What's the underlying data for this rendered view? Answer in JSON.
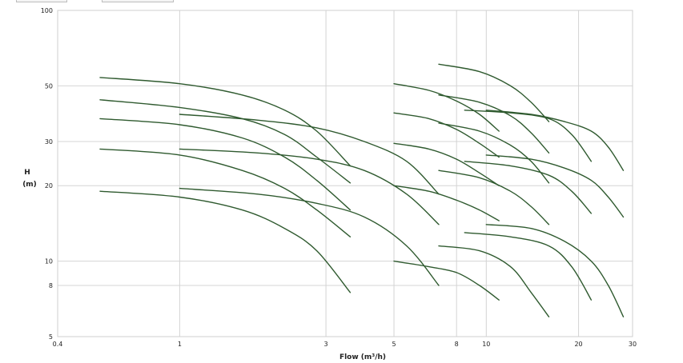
{
  "colors": {
    "curve": "#2f5a2f",
    "grid": "#d4d4d4",
    "frame": "#cfcfcf"
  },
  "chart_data": {
    "type": "line",
    "title": "",
    "xlabel": "Flow (m³/h)",
    "ylabel_line1": "H",
    "ylabel_line2": "(m)",
    "x_scale": "log",
    "y_scale": "log",
    "xlim": [
      0.4,
      30
    ],
    "ylim": [
      5,
      100
    ],
    "grid": true,
    "x_ticks": [
      {
        "value": 0.4,
        "label": "0.4"
      },
      {
        "value": 1,
        "label": "1"
      },
      {
        "value": 3,
        "label": "3"
      },
      {
        "value": 5,
        "label": "5"
      },
      {
        "value": 8,
        "label": "8"
      },
      {
        "value": 10,
        "label": "10"
      },
      {
        "value": 20,
        "label": "20"
      },
      {
        "value": 30,
        "label": "30"
      }
    ],
    "y_ticks": [
      {
        "value": 5,
        "label": "5"
      },
      {
        "value": 8,
        "label": "8"
      },
      {
        "value": 10,
        "label": "10"
      },
      {
        "value": 20,
        "label": "20"
      },
      {
        "value": 30,
        "label": "30"
      },
      {
        "value": 50,
        "label": "50"
      },
      {
        "value": 100,
        "label": "100"
      }
    ],
    "series": [
      {
        "points": [
          [
            0.55,
            54
          ],
          [
            1.0,
            51
          ],
          [
            1.6,
            46
          ],
          [
            2.2,
            40
          ],
          [
            2.8,
            33
          ],
          [
            3.6,
            24
          ]
        ]
      },
      {
        "points": [
          [
            0.55,
            44
          ],
          [
            1.0,
            41
          ],
          [
            1.6,
            37
          ],
          [
            2.2,
            32
          ],
          [
            2.8,
            26
          ],
          [
            3.6,
            20.5
          ]
        ]
      },
      {
        "points": [
          [
            0.55,
            37
          ],
          [
            1.0,
            35
          ],
          [
            1.6,
            31
          ],
          [
            2.2,
            26
          ],
          [
            2.8,
            21
          ],
          [
            3.6,
            16
          ]
        ]
      },
      {
        "points": [
          [
            0.55,
            28
          ],
          [
            1.0,
            26.5
          ],
          [
            1.6,
            23
          ],
          [
            2.2,
            19.5
          ],
          [
            2.8,
            16
          ],
          [
            3.6,
            12.5
          ]
        ]
      },
      {
        "points": [
          [
            0.55,
            19
          ],
          [
            1.0,
            18
          ],
          [
            1.6,
            16
          ],
          [
            2.2,
            13.5
          ],
          [
            2.8,
            11
          ],
          [
            3.6,
            7.5
          ]
        ]
      },
      {
        "points": [
          [
            1.0,
            38.5
          ],
          [
            1.8,
            36.5
          ],
          [
            2.8,
            34
          ],
          [
            4.0,
            30
          ],
          [
            5.5,
            25
          ],
          [
            7.0,
            18.5
          ]
        ]
      },
      {
        "points": [
          [
            1.0,
            28
          ],
          [
            1.8,
            27
          ],
          [
            2.8,
            25.5
          ],
          [
            4.0,
            23
          ],
          [
            5.5,
            18.5
          ],
          [
            7.0,
            14
          ]
        ]
      },
      {
        "points": [
          [
            1.0,
            19.5
          ],
          [
            1.8,
            18.5
          ],
          [
            2.8,
            17
          ],
          [
            4.0,
            15
          ],
          [
            5.5,
            11.5
          ],
          [
            7.0,
            8
          ]
        ]
      },
      {
        "points": [
          [
            5.0,
            51
          ],
          [
            6.5,
            48
          ],
          [
            8.0,
            43.5
          ],
          [
            9.5,
            38.5
          ],
          [
            11.0,
            33
          ]
        ]
      },
      {
        "points": [
          [
            5.0,
            39
          ],
          [
            6.5,
            37
          ],
          [
            8.0,
            33.5
          ],
          [
            9.5,
            29.5
          ],
          [
            11.0,
            26
          ]
        ]
      },
      {
        "points": [
          [
            5.0,
            29.5
          ],
          [
            6.5,
            28
          ],
          [
            8.0,
            25.5
          ],
          [
            9.5,
            22.5
          ],
          [
            11.0,
            20
          ]
        ]
      },
      {
        "points": [
          [
            5.0,
            20
          ],
          [
            6.5,
            19
          ],
          [
            8.0,
            17.5
          ],
          [
            9.5,
            16
          ],
          [
            11.0,
            14.5
          ]
        ]
      },
      {
        "points": [
          [
            5.0,
            10
          ],
          [
            6.5,
            9.5
          ],
          [
            8.0,
            9
          ],
          [
            9.5,
            8
          ],
          [
            11.0,
            7
          ]
        ]
      },
      {
        "points": [
          [
            7.0,
            61
          ],
          [
            9.5,
            57
          ],
          [
            12.0,
            50
          ],
          [
            14.0,
            43
          ],
          [
            16.0,
            36
          ]
        ]
      },
      {
        "points": [
          [
            7.0,
            46
          ],
          [
            9.5,
            43
          ],
          [
            12.0,
            38
          ],
          [
            14.0,
            32.5
          ],
          [
            16.0,
            27
          ]
        ]
      },
      {
        "points": [
          [
            7.0,
            35.5
          ],
          [
            9.5,
            33
          ],
          [
            12.0,
            29
          ],
          [
            14.0,
            25
          ],
          [
            16.0,
            20.5
          ]
        ]
      },
      {
        "points": [
          [
            7.0,
            23
          ],
          [
            9.5,
            21.5
          ],
          [
            12.0,
            19
          ],
          [
            14.0,
            16.5
          ],
          [
            16.0,
            14
          ]
        ]
      },
      {
        "points": [
          [
            7.0,
            11.5
          ],
          [
            9.5,
            11
          ],
          [
            12.0,
            9.5
          ],
          [
            14.0,
            7.5
          ],
          [
            16.0,
            6
          ]
        ]
      },
      {
        "points": [
          [
            8.5,
            40
          ],
          [
            12.0,
            39
          ],
          [
            16.0,
            37
          ],
          [
            19.0,
            32
          ],
          [
            22.0,
            25
          ]
        ]
      },
      {
        "points": [
          [
            8.5,
            25
          ],
          [
            12.0,
            24
          ],
          [
            16.0,
            22
          ],
          [
            19.0,
            19
          ],
          [
            22.0,
            15.5
          ]
        ]
      },
      {
        "points": [
          [
            8.5,
            13
          ],
          [
            12.0,
            12.5
          ],
          [
            16.0,
            11.5
          ],
          [
            19.0,
            9.5
          ],
          [
            22.0,
            7
          ]
        ]
      },
      {
        "points": [
          [
            10.0,
            40
          ],
          [
            14.0,
            38.5
          ],
          [
            18.0,
            36
          ],
          [
            22.0,
            33
          ],
          [
            25.0,
            28.5
          ],
          [
            28.0,
            23
          ]
        ]
      },
      {
        "points": [
          [
            10.0,
            26.5
          ],
          [
            14.0,
            25.5
          ],
          [
            18.0,
            23.5
          ],
          [
            22.0,
            21
          ],
          [
            25.0,
            18
          ],
          [
            28.0,
            15
          ]
        ]
      },
      {
        "points": [
          [
            10.0,
            14
          ],
          [
            14.0,
            13.5
          ],
          [
            18.0,
            12
          ],
          [
            22.0,
            10
          ],
          [
            25.0,
            8
          ],
          [
            28.0,
            6
          ]
        ]
      }
    ]
  }
}
